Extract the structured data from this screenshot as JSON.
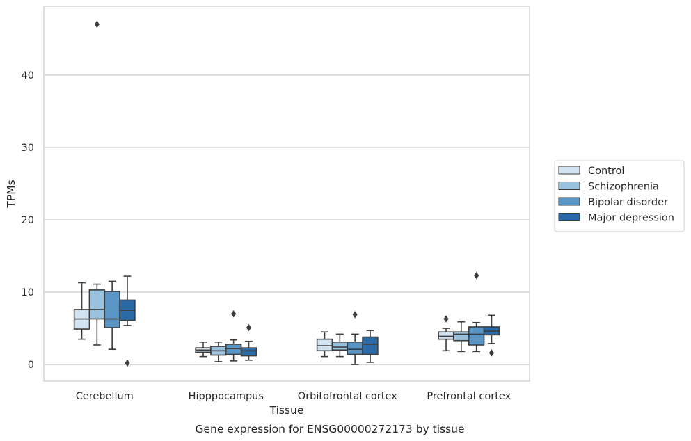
{
  "chart_data": {
    "type": "box",
    "title": "",
    "caption": "Gene expression for ENSG00000272173 by tissue",
    "xlabel": "Tissue",
    "ylabel": "TPMs",
    "ylim": [
      -2.3,
      49.5
    ],
    "yticks": [
      0,
      10,
      20,
      30,
      40
    ],
    "grid": "horizontal",
    "legend_placement": "outside-right",
    "categories": [
      "Cerebellum",
      "Hipppocampus",
      "Orbitofrontal cortex",
      "Prefrontal cortex"
    ],
    "series": [
      {
        "name": "Control",
        "color": "#d2e3f2",
        "boxes": [
          {
            "whisker_low": 3.5,
            "q1": 4.9,
            "median": 6.3,
            "q3": 7.6,
            "whisker_high": 11.3,
            "outliers": []
          },
          {
            "whisker_low": 1.1,
            "q1": 1.7,
            "median": 2.0,
            "q3": 2.3,
            "whisker_high": 3.1,
            "outliers": []
          },
          {
            "whisker_low": 1.1,
            "q1": 1.9,
            "median": 2.6,
            "q3": 3.5,
            "whisker_high": 4.5,
            "outliers": []
          },
          {
            "whisker_low": 1.9,
            "q1": 3.5,
            "median": 3.9,
            "q3": 4.5,
            "whisker_high": 5.0,
            "outliers": [
              6.3
            ]
          }
        ]
      },
      {
        "name": "Schizophrenia",
        "color": "#9ac2de",
        "boxes": [
          {
            "whisker_low": 2.7,
            "q1": 6.3,
            "median": 7.6,
            "q3": 10.3,
            "whisker_high": 11.1,
            "outliers": [
              47.0
            ]
          },
          {
            "whisker_low": 0.4,
            "q1": 1.3,
            "median": 1.9,
            "q3": 2.5,
            "whisker_high": 3.1,
            "outliers": []
          },
          {
            "whisker_low": 1.1,
            "q1": 2.0,
            "median": 2.4,
            "q3": 3.1,
            "whisker_high": 4.2,
            "outliers": []
          },
          {
            "whisker_low": 1.8,
            "q1": 3.3,
            "median": 4.2,
            "q3": 4.5,
            "whisker_high": 5.9,
            "outliers": []
          }
        ]
      },
      {
        "name": "Bipolar disorder",
        "color": "#5996c6",
        "boxes": [
          {
            "whisker_low": 2.1,
            "q1": 5.1,
            "median": 6.3,
            "q3": 10.1,
            "whisker_high": 11.5,
            "outliers": []
          },
          {
            "whisker_low": 0.5,
            "q1": 1.4,
            "median": 2.2,
            "q3": 2.8,
            "whisker_high": 3.4,
            "outliers": [
              7.0
            ]
          },
          {
            "whisker_low": 0.0,
            "q1": 1.4,
            "median": 2.1,
            "q3": 3.1,
            "whisker_high": 4.2,
            "outliers": [
              6.9
            ]
          },
          {
            "whisker_low": 1.8,
            "q1": 2.7,
            "median": 4.2,
            "q3": 5.2,
            "whisker_high": 5.8,
            "outliers": [
              12.3
            ]
          }
        ]
      },
      {
        "name": "Major depression",
        "color": "#2b6aa6",
        "boxes": [
          {
            "whisker_low": 5.4,
            "q1": 6.1,
            "median": 7.5,
            "q3": 8.9,
            "whisker_high": 12.2,
            "outliers": [
              0.2
            ]
          },
          {
            "whisker_low": 0.6,
            "q1": 1.2,
            "median": 1.9,
            "q3": 2.3,
            "whisker_high": 3.2,
            "outliers": [
              5.1
            ]
          },
          {
            "whisker_low": 0.3,
            "q1": 1.4,
            "median": 2.8,
            "q3": 3.8,
            "whisker_high": 4.7,
            "outliers": []
          },
          {
            "whisker_low": 2.9,
            "q1": 4.1,
            "median": 4.6,
            "q3": 5.2,
            "whisker_high": 6.8,
            "outliers": [
              1.6
            ]
          }
        ]
      }
    ]
  }
}
